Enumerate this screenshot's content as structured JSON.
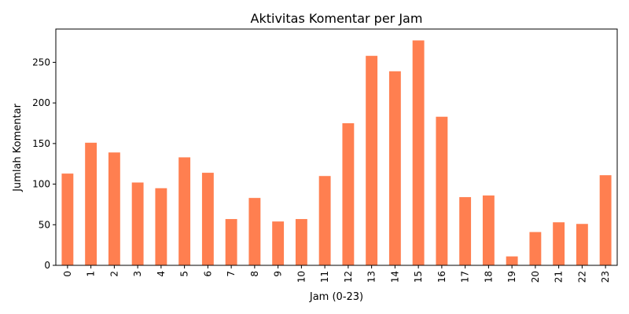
{
  "chart_data": {
    "type": "bar",
    "title": "Aktivitas Komentar per Jam",
    "xlabel": "Jam (0-23)",
    "ylabel": "Jumlah Komentar",
    "categories": [
      "0",
      "1",
      "2",
      "3",
      "4",
      "5",
      "6",
      "7",
      "8",
      "9",
      "10",
      "11",
      "12",
      "13",
      "14",
      "15",
      "16",
      "17",
      "18",
      "19",
      "20",
      "21",
      "22",
      "23"
    ],
    "values": [
      113,
      151,
      139,
      102,
      95,
      133,
      114,
      57,
      83,
      54,
      57,
      110,
      175,
      258,
      239,
      277,
      183,
      84,
      86,
      11,
      41,
      53,
      51,
      111
    ],
    "ylim": [
      0,
      291
    ],
    "yticks": [
      0,
      50,
      100,
      150,
      200,
      250
    ],
    "grid": false,
    "legend": "none",
    "bar_color": "#ff7f50"
  }
}
